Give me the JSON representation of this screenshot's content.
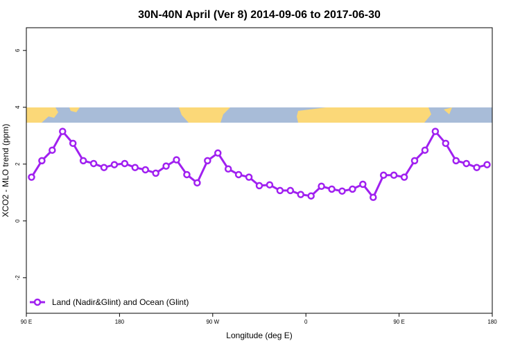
{
  "chart_data": {
    "type": "line",
    "title": "30N-40N April (Ver 8)   2014-09-06 to 2017-06-30",
    "xlabel": "Longitude (deg E)",
    "ylabel": "XCO2 - MLO trend (ppm)",
    "xlim": [
      90,
      540
    ],
    "ylim": [
      -3.25,
      6.8
    ],
    "xticks": [
      {
        "value": 90,
        "label": "90 E"
      },
      180,
      {
        "value": 270,
        "label": "90 W"
      },
      {
        "value": 360,
        "label": "0"
      },
      {
        "value": 450,
        "label": "90 E"
      },
      180
    ],
    "yticks": [
      -2,
      0,
      2,
      4,
      6
    ],
    "legend": "bottom-left",
    "series": [
      {
        "name": "Land (Nadir&Glint) and Ocean (Glint)",
        "color": "#a020f0",
        "x": [
          95,
          105,
          115,
          125,
          135,
          145,
          155,
          165,
          175,
          185,
          195,
          205,
          215,
          225,
          235,
          245,
          255,
          265,
          275,
          285,
          295,
          305,
          315,
          325,
          335,
          345,
          355,
          365,
          375,
          385,
          395,
          405,
          415,
          425,
          435,
          445,
          455,
          465,
          475,
          485,
          495,
          505,
          515,
          525,
          535
        ],
        "values": [
          1.54,
          2.12,
          2.49,
          3.15,
          2.73,
          2.12,
          2.02,
          1.88,
          1.98,
          2.02,
          1.88,
          1.8,
          1.68,
          1.93,
          2.15,
          1.63,
          1.34,
          2.12,
          2.39,
          1.83,
          1.63,
          1.54,
          1.24,
          1.27,
          1.07,
          1.07,
          0.93,
          0.88,
          1.22,
          1.12,
          1.05,
          1.12,
          1.29,
          0.83,
          1.61,
          1.61,
          1.54,
          2.12,
          2.49,
          3.15,
          2.73,
          2.12,
          2.02,
          1.88,
          1.98
        ]
      }
    ]
  }
}
